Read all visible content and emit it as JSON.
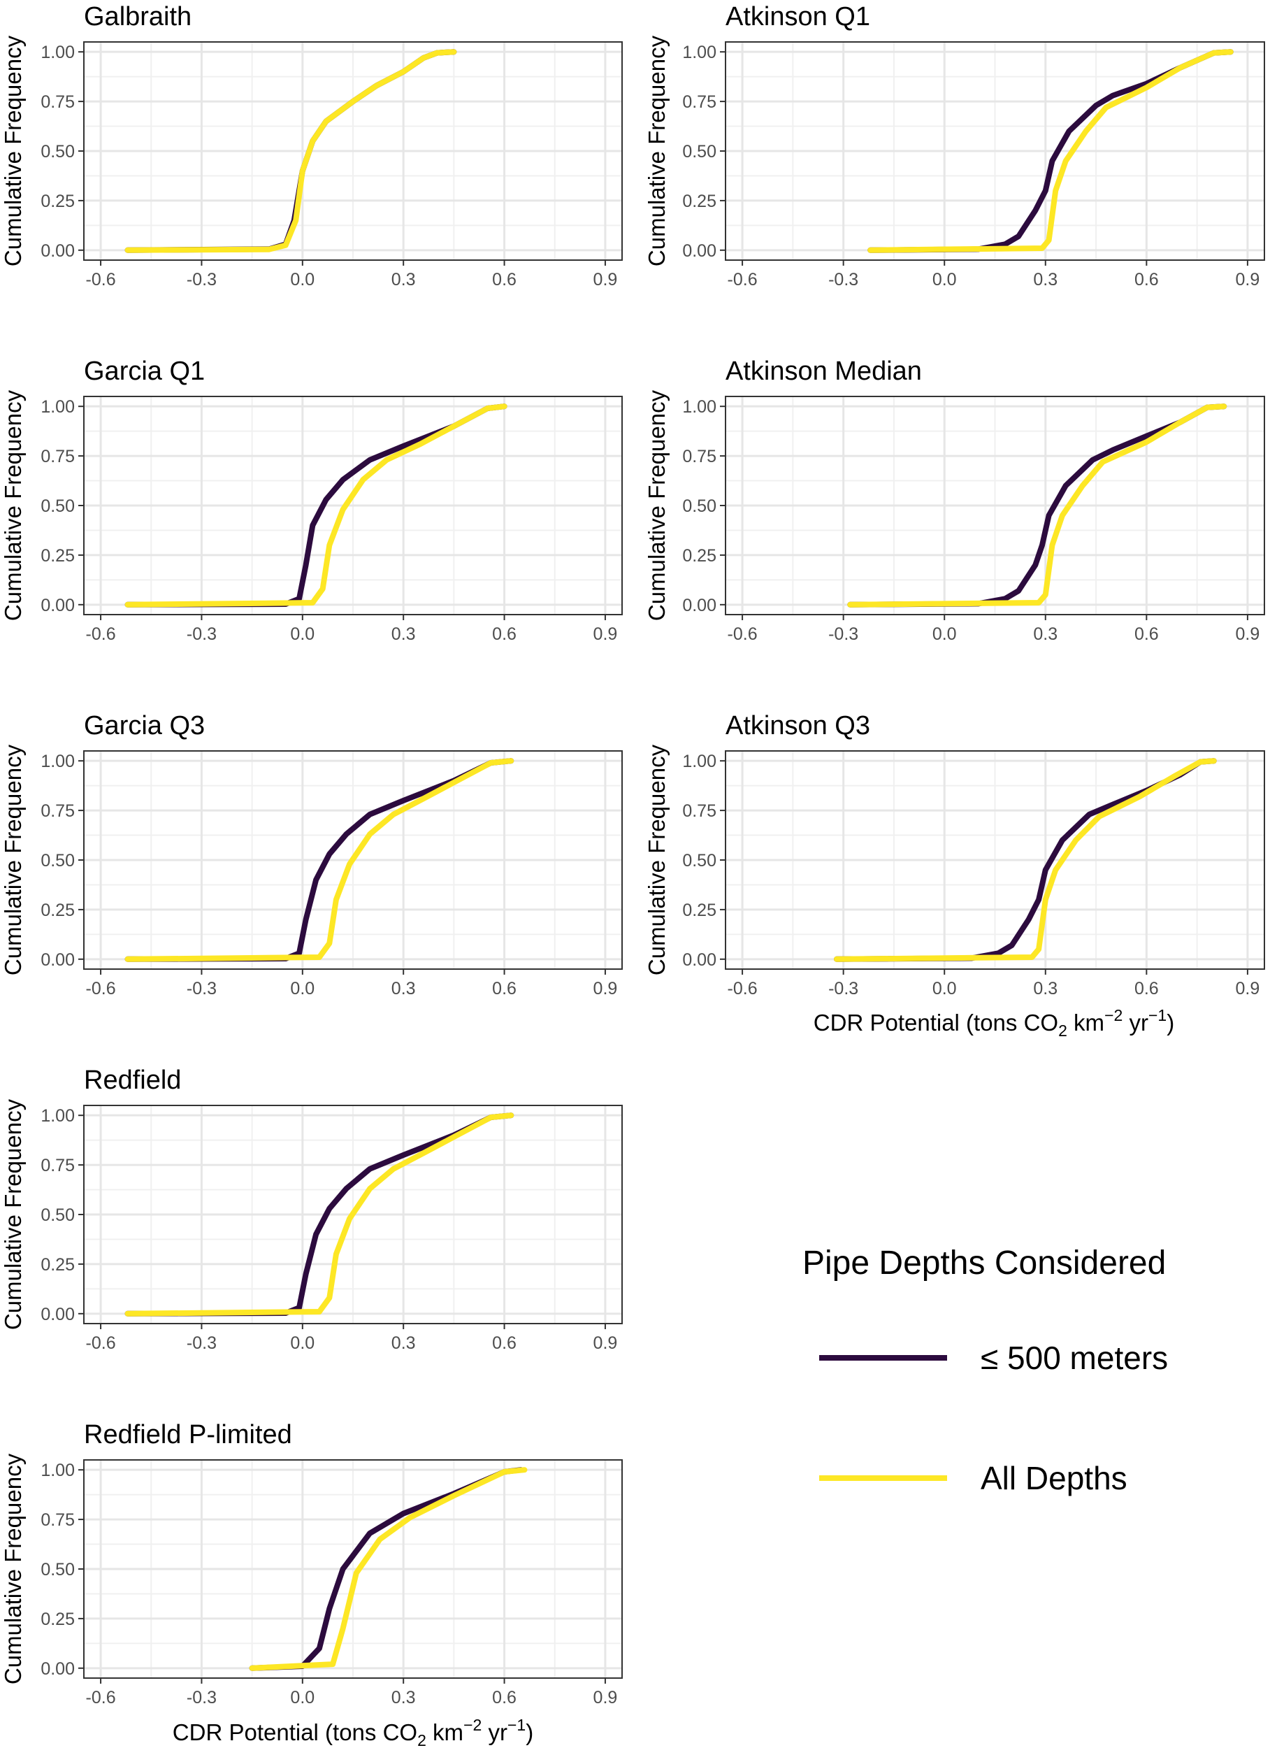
{
  "chart_data": {
    "type": "line",
    "ylabel": "Cumulative Frequency",
    "xlabel": "CDR Potential (tons CO2 km-2 yr-1)",
    "xlabel_parts": {
      "pre": "CDR Potential (tons CO",
      "sub": "2",
      "mid": " km",
      "sup1": "−2",
      "mid2": " yr",
      "sup2": "−1",
      "post": ")"
    },
    "xlim": [
      -0.65,
      0.95
    ],
    "ylim": [
      -0.05,
      1.05
    ],
    "xticks": [
      "-0.6",
      "-0.3",
      "0.0",
      "0.3",
      "0.6",
      "0.9"
    ],
    "xtick_values": [
      -0.6,
      -0.3,
      0.0,
      0.3,
      0.6,
      0.9
    ],
    "yticks": [
      "0.00",
      "0.25",
      "0.50",
      "0.75",
      "1.00"
    ],
    "ytick_values": [
      0,
      0.25,
      0.5,
      0.75,
      1.0
    ],
    "grid": true,
    "legend": {
      "title": "Pipe Depths Considered",
      "placement": "bottom-right",
      "entries": [
        {
          "name": "≤ 500 meters",
          "color": "#2c0b3e"
        },
        {
          "name": "All Depths",
          "color": "#fde725"
        }
      ]
    },
    "panels": [
      {
        "title": "Galbraith",
        "series": [
          {
            "name": "≤ 500 meters",
            "points": [
              [
                -0.52,
                0
              ],
              [
                -0.1,
                0.005
              ],
              [
                -0.05,
                0.03
              ],
              [
                -0.025,
                0.15
              ],
              [
                0,
                0.4
              ],
              [
                0.03,
                0.55
              ],
              [
                0.07,
                0.65
              ],
              [
                0.15,
                0.75
              ],
              [
                0.22,
                0.83
              ],
              [
                0.3,
                0.9
              ],
              [
                0.36,
                0.97
              ],
              [
                0.4,
                0.995
              ],
              [
                0.45,
                1
              ]
            ]
          },
          {
            "name": "All Depths",
            "points": [
              [
                -0.52,
                0
              ],
              [
                -0.1,
                0.004
              ],
              [
                -0.05,
                0.025
              ],
              [
                -0.02,
                0.15
              ],
              [
                0,
                0.4
              ],
              [
                0.03,
                0.55
              ],
              [
                0.07,
                0.65
              ],
              [
                0.15,
                0.75
              ],
              [
                0.22,
                0.83
              ],
              [
                0.3,
                0.9
              ],
              [
                0.36,
                0.97
              ],
              [
                0.4,
                0.995
              ],
              [
                0.45,
                1
              ]
            ]
          }
        ]
      },
      {
        "title": "Atkinson Q1",
        "series": [
          {
            "name": "≤ 500 meters",
            "points": [
              [
                -0.22,
                0
              ],
              [
                0.1,
                0.005
              ],
              [
                0.18,
                0.03
              ],
              [
                0.22,
                0.07
              ],
              [
                0.27,
                0.2
              ],
              [
                0.3,
                0.3
              ],
              [
                0.32,
                0.45
              ],
              [
                0.37,
                0.6
              ],
              [
                0.45,
                0.73
              ],
              [
                0.5,
                0.78
              ],
              [
                0.6,
                0.84
              ],
              [
                0.7,
                0.92
              ],
              [
                0.8,
                0.995
              ],
              [
                0.85,
                1
              ]
            ]
          },
          {
            "name": "All Depths",
            "points": [
              [
                -0.22,
                0
              ],
              [
                0.29,
                0.01
              ],
              [
                0.31,
                0.05
              ],
              [
                0.33,
                0.3
              ],
              [
                0.36,
                0.45
              ],
              [
                0.42,
                0.6
              ],
              [
                0.48,
                0.72
              ],
              [
                0.6,
                0.82
              ],
              [
                0.7,
                0.92
              ],
              [
                0.8,
                0.995
              ],
              [
                0.85,
                1
              ]
            ]
          }
        ]
      },
      {
        "title": "Garcia Q1",
        "series": [
          {
            "name": "≤ 500 meters",
            "points": [
              [
                -0.52,
                0
              ],
              [
                -0.05,
                0.003
              ],
              [
                -0.01,
                0.03
              ],
              [
                0.01,
                0.2
              ],
              [
                0.03,
                0.4
              ],
              [
                0.07,
                0.53
              ],
              [
                0.12,
                0.63
              ],
              [
                0.2,
                0.73
              ],
              [
                0.3,
                0.8
              ],
              [
                0.45,
                0.9
              ],
              [
                0.55,
                0.99
              ],
              [
                0.6,
                1
              ]
            ]
          },
          {
            "name": "All Depths",
            "points": [
              [
                -0.52,
                0
              ],
              [
                0.03,
                0.01
              ],
              [
                0.06,
                0.08
              ],
              [
                0.08,
                0.3
              ],
              [
                0.12,
                0.48
              ],
              [
                0.18,
                0.63
              ],
              [
                0.25,
                0.73
              ],
              [
                0.35,
                0.81
              ],
              [
                0.45,
                0.9
              ],
              [
                0.55,
                0.99
              ],
              [
                0.6,
                1
              ]
            ]
          }
        ]
      },
      {
        "title": "Atkinson Median",
        "series": [
          {
            "name": "≤ 500 meters",
            "points": [
              [
                -0.28,
                0
              ],
              [
                0.1,
                0.005
              ],
              [
                0.18,
                0.03
              ],
              [
                0.22,
                0.07
              ],
              [
                0.27,
                0.2
              ],
              [
                0.29,
                0.3
              ],
              [
                0.31,
                0.45
              ],
              [
                0.36,
                0.6
              ],
              [
                0.44,
                0.73
              ],
              [
                0.5,
                0.78
              ],
              [
                0.6,
                0.85
              ],
              [
                0.7,
                0.92
              ],
              [
                0.78,
                0.995
              ],
              [
                0.83,
                1
              ]
            ]
          },
          {
            "name": "All Depths",
            "points": [
              [
                -0.28,
                0
              ],
              [
                0.28,
                0.01
              ],
              [
                0.3,
                0.05
              ],
              [
                0.32,
                0.3
              ],
              [
                0.35,
                0.45
              ],
              [
                0.41,
                0.6
              ],
              [
                0.47,
                0.72
              ],
              [
                0.6,
                0.82
              ],
              [
                0.7,
                0.92
              ],
              [
                0.78,
                0.995
              ],
              [
                0.83,
                1
              ]
            ]
          }
        ]
      },
      {
        "title": "Garcia Q3",
        "series": [
          {
            "name": "≤ 500 meters",
            "points": [
              [
                -0.52,
                0
              ],
              [
                -0.05,
                0.003
              ],
              [
                -0.01,
                0.03
              ],
              [
                0.01,
                0.2
              ],
              [
                0.04,
                0.4
              ],
              [
                0.08,
                0.53
              ],
              [
                0.13,
                0.63
              ],
              [
                0.2,
                0.73
              ],
              [
                0.3,
                0.8
              ],
              [
                0.45,
                0.9
              ],
              [
                0.56,
                0.99
              ],
              [
                0.62,
                1
              ]
            ]
          },
          {
            "name": "All Depths",
            "points": [
              [
                -0.52,
                0
              ],
              [
                0.05,
                0.01
              ],
              [
                0.08,
                0.08
              ],
              [
                0.1,
                0.3
              ],
              [
                0.14,
                0.48
              ],
              [
                0.2,
                0.63
              ],
              [
                0.27,
                0.73
              ],
              [
                0.36,
                0.81
              ],
              [
                0.46,
                0.9
              ],
              [
                0.56,
                0.99
              ],
              [
                0.62,
                1
              ]
            ]
          }
        ]
      },
      {
        "title": "Atkinson Q3",
        "series": [
          {
            "name": "≤ 500 meters",
            "points": [
              [
                -0.32,
                0
              ],
              [
                0.08,
                0.005
              ],
              [
                0.16,
                0.03
              ],
              [
                0.2,
                0.07
              ],
              [
                0.25,
                0.2
              ],
              [
                0.28,
                0.3
              ],
              [
                0.3,
                0.45
              ],
              [
                0.35,
                0.6
              ],
              [
                0.43,
                0.73
              ],
              [
                0.5,
                0.78
              ],
              [
                0.6,
                0.85
              ],
              [
                0.7,
                0.93
              ],
              [
                0.76,
                0.995
              ],
              [
                0.8,
                1
              ]
            ]
          },
          {
            "name": "All Depths",
            "points": [
              [
                -0.32,
                0
              ],
              [
                0.26,
                0.01
              ],
              [
                0.28,
                0.05
              ],
              [
                0.3,
                0.3
              ],
              [
                0.33,
                0.45
              ],
              [
                0.39,
                0.6
              ],
              [
                0.46,
                0.72
              ],
              [
                0.58,
                0.82
              ],
              [
                0.68,
                0.92
              ],
              [
                0.76,
                0.995
              ],
              [
                0.8,
                1
              ]
            ]
          }
        ]
      },
      {
        "title": "Redfield",
        "series": [
          {
            "name": "≤ 500 meters",
            "points": [
              [
                -0.52,
                0
              ],
              [
                -0.05,
                0.003
              ],
              [
                -0.01,
                0.03
              ],
              [
                0.01,
                0.2
              ],
              [
                0.04,
                0.4
              ],
              [
                0.08,
                0.53
              ],
              [
                0.13,
                0.63
              ],
              [
                0.2,
                0.73
              ],
              [
                0.3,
                0.8
              ],
              [
                0.45,
                0.9
              ],
              [
                0.56,
                0.99
              ],
              [
                0.62,
                1
              ]
            ]
          },
          {
            "name": "All Depths",
            "points": [
              [
                -0.52,
                0
              ],
              [
                0.05,
                0.01
              ],
              [
                0.08,
                0.08
              ],
              [
                0.1,
                0.3
              ],
              [
                0.14,
                0.48
              ],
              [
                0.2,
                0.63
              ],
              [
                0.27,
                0.73
              ],
              [
                0.36,
                0.81
              ],
              [
                0.46,
                0.9
              ],
              [
                0.56,
                0.99
              ],
              [
                0.62,
                1
              ]
            ]
          }
        ]
      },
      {
        "title": "Redfield P-limited",
        "series": [
          {
            "name": "≤ 500 meters",
            "points": [
              [
                -0.15,
                0
              ],
              [
                0,
                0.01
              ],
              [
                0.05,
                0.1
              ],
              [
                0.08,
                0.3
              ],
              [
                0.12,
                0.5
              ],
              [
                0.2,
                0.68
              ],
              [
                0.3,
                0.78
              ],
              [
                0.45,
                0.88
              ],
              [
                0.6,
                0.99
              ],
              [
                0.65,
                1
              ]
            ]
          },
          {
            "name": "All Depths",
            "points": [
              [
                -0.15,
                0
              ],
              [
                0.09,
                0.02
              ],
              [
                0.12,
                0.2
              ],
              [
                0.16,
                0.48
              ],
              [
                0.23,
                0.65
              ],
              [
                0.32,
                0.76
              ],
              [
                0.45,
                0.87
              ],
              [
                0.6,
                0.99
              ],
              [
                0.66,
                1
              ]
            ]
          }
        ]
      }
    ]
  }
}
